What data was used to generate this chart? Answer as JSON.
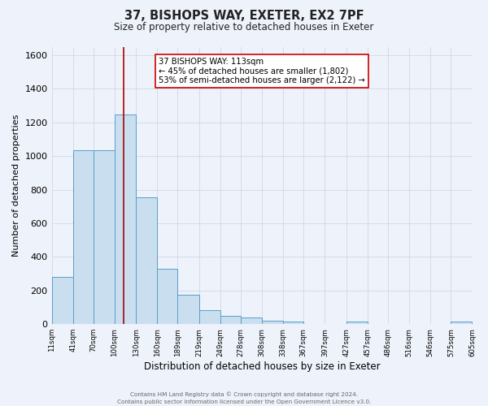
{
  "title_line1": "37, BISHOPS WAY, EXETER, EX2 7PF",
  "title_line2": "Size of property relative to detached houses in Exeter",
  "xlabel": "Distribution of detached houses by size in Exeter",
  "ylabel": "Number of detached properties",
  "bin_edges": [
    11,
    41,
    70,
    100,
    130,
    160,
    189,
    219,
    249,
    278,
    308,
    338,
    367,
    397,
    427,
    457,
    486,
    516,
    546,
    575,
    605
  ],
  "bin_heights": [
    280,
    1035,
    1035,
    1245,
    755,
    330,
    175,
    85,
    50,
    38,
    20,
    15,
    0,
    0,
    15,
    0,
    0,
    0,
    0,
    14
  ],
  "bar_facecolor": "#c9dff0",
  "bar_edgecolor": "#5a9ec9",
  "vline_x": 113,
  "vline_color": "#aa0000",
  "annotation_title": "37 BISHOPS WAY: 113sqm",
  "annotation_line1": "← 45% of detached houses are smaller (1,802)",
  "annotation_line2": "53% of semi-detached houses are larger (2,122) →",
  "annotation_box_edgecolor": "#cc0000",
  "annotation_box_facecolor": "#ffffff",
  "ylim": [
    0,
    1650
  ],
  "yticks": [
    0,
    200,
    400,
    600,
    800,
    1000,
    1200,
    1400,
    1600
  ],
  "xtick_labels": [
    "11sqm",
    "41sqm",
    "70sqm",
    "100sqm",
    "130sqm",
    "160sqm",
    "189sqm",
    "219sqm",
    "249sqm",
    "278sqm",
    "308sqm",
    "338sqm",
    "367sqm",
    "397sqm",
    "427sqm",
    "457sqm",
    "486sqm",
    "516sqm",
    "546sqm",
    "575sqm",
    "605sqm"
  ],
  "grid_color": "#d0d8e8",
  "bg_color": "#eef2fa",
  "footer_line1": "Contains HM Land Registry data © Crown copyright and database right 2024.",
  "footer_line2": "Contains public sector information licensed under the Open Government Licence v3.0."
}
